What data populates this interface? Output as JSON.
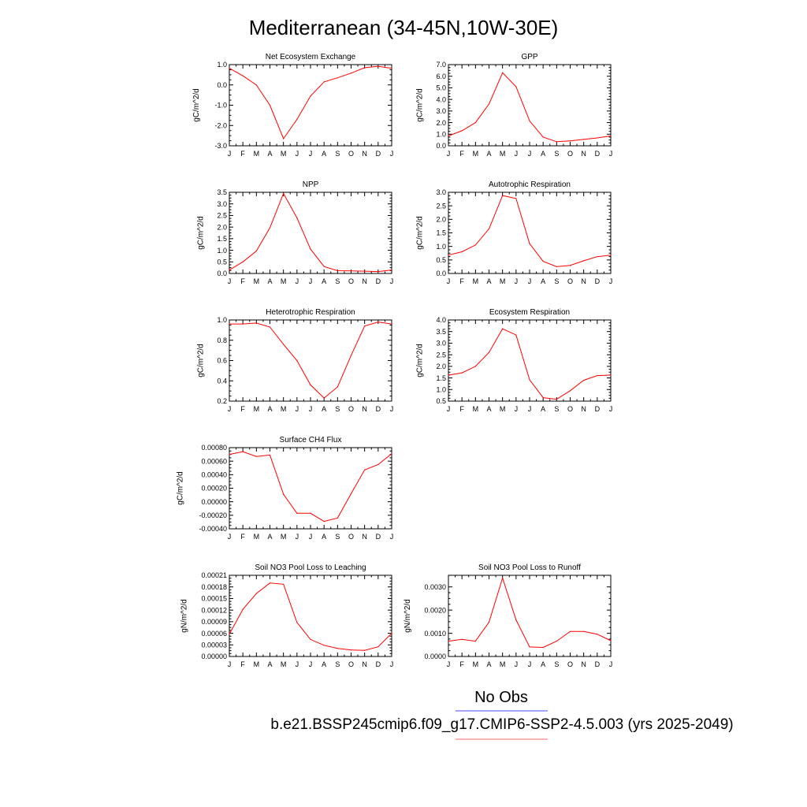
{
  "figure": {
    "title": "Mediterranean (34-45N,10W-30E)",
    "months": [
      "J",
      "F",
      "M",
      "A",
      "M",
      "J",
      "J",
      "A",
      "S",
      "O",
      "N",
      "D",
      "J"
    ],
    "line_color": "#ff0000",
    "legend": {
      "obs_label": "No Obs",
      "obs_color": "#4444ff",
      "case_label": "b.e21.BSSP245cmip6.f09_g17.CMIP6-SSP2-4.5.003 (yrs 2025-2049)",
      "case_color": "#ff6666"
    }
  },
  "chart_data": [
    {
      "type": "line",
      "title": "Net Ecosystem Exchange",
      "ylabel": "gC/m^2/d",
      "ylim": [
        -3.0,
        1.0
      ],
      "yticks": [
        -3.0,
        -2.0,
        -1.0,
        0.0,
        1.0
      ],
      "yticklabels": [
        "-3.0",
        "-2.0",
        "-1.0",
        "0.0",
        "1.0"
      ],
      "x": [
        "J",
        "F",
        "M",
        "A",
        "M",
        "J",
        "J",
        "A",
        "S",
        "O",
        "N",
        "D",
        "J"
      ],
      "values": [
        0.82,
        0.45,
        0.0,
        -1.0,
        -2.65,
        -1.7,
        -0.55,
        0.15,
        0.35,
        0.58,
        0.85,
        0.92,
        0.82
      ]
    },
    {
      "type": "line",
      "title": "GPP",
      "ylabel": "gC/m^2/d",
      "ylim": [
        0.0,
        7.0
      ],
      "yticks": [
        0,
        1,
        2,
        3,
        4,
        5,
        6,
        7
      ],
      "yticklabels": [
        "0.0",
        "1.0",
        "2.0",
        "3.0",
        "4.0",
        "5.0",
        "6.0",
        "7.0"
      ],
      "x": [
        "J",
        "F",
        "M",
        "A",
        "M",
        "J",
        "J",
        "A",
        "S",
        "O",
        "N",
        "D",
        "J"
      ],
      "values": [
        0.85,
        1.3,
        2.0,
        3.6,
        6.3,
        5.1,
        2.15,
        0.75,
        0.35,
        0.42,
        0.55,
        0.68,
        0.85
      ]
    },
    {
      "type": "line",
      "title": "NPP",
      "ylabel": "gC/m^2/d",
      "ylim": [
        0.0,
        3.5
      ],
      "yticks": [
        0,
        0.5,
        1,
        1.5,
        2,
        2.5,
        3,
        3.5
      ],
      "yticklabels": [
        "0.0",
        "0.5",
        "1.0",
        "1.5",
        "2.0",
        "2.5",
        "3.0",
        "3.5"
      ],
      "x": [
        "J",
        "F",
        "M",
        "A",
        "M",
        "J",
        "J",
        "A",
        "S",
        "O",
        "N",
        "D",
        "J"
      ],
      "values": [
        0.15,
        0.5,
        0.97,
        1.97,
        3.45,
        2.4,
        1.05,
        0.3,
        0.12,
        0.11,
        0.1,
        0.08,
        0.15
      ]
    },
    {
      "type": "line",
      "title": "Autotrophic Respiration",
      "ylabel": "gC/m^2/d",
      "ylim": [
        0.0,
        3.0
      ],
      "yticks": [
        0,
        0.5,
        1,
        1.5,
        2,
        2.5,
        3
      ],
      "yticklabels": [
        "0.0",
        "0.5",
        "1.0",
        "1.5",
        "2.0",
        "2.5",
        "3.0"
      ],
      "x": [
        "J",
        "F",
        "M",
        "A",
        "M",
        "J",
        "J",
        "A",
        "S",
        "O",
        "N",
        "D",
        "J"
      ],
      "values": [
        0.68,
        0.8,
        1.05,
        1.65,
        2.88,
        2.77,
        1.1,
        0.45,
        0.25,
        0.3,
        0.47,
        0.62,
        0.68
      ]
    },
    {
      "type": "line",
      "title": "Heterotrophic Respiration",
      "ylabel": "gC/m^2/d",
      "ylim": [
        0.2,
        1.0
      ],
      "yticks": [
        0.2,
        0.4,
        0.6,
        0.8,
        1.0
      ],
      "yticklabels": [
        "0.2",
        "0.4",
        "0.6",
        "0.8",
        "1.0"
      ],
      "x": [
        "J",
        "F",
        "M",
        "A",
        "M",
        "J",
        "J",
        "A",
        "S",
        "O",
        "N",
        "D",
        "J"
      ],
      "values": [
        0.96,
        0.96,
        0.97,
        0.93,
        0.76,
        0.6,
        0.36,
        0.23,
        0.34,
        0.65,
        0.94,
        0.98,
        0.96
      ]
    },
    {
      "type": "line",
      "title": "Ecosystem Respiration",
      "ylabel": "gC/m^2/d",
      "ylim": [
        0.5,
        4.0
      ],
      "yticks": [
        0.5,
        1,
        1.5,
        2,
        2.5,
        3,
        3.5,
        4
      ],
      "yticklabels": [
        "0.5",
        "1.0",
        "1.5",
        "2.0",
        "2.5",
        "3.0",
        "3.5",
        "4.0"
      ],
      "x": [
        "J",
        "F",
        "M",
        "A",
        "M",
        "J",
        "J",
        "A",
        "S",
        "O",
        "N",
        "D",
        "J"
      ],
      "values": [
        1.62,
        1.72,
        2.0,
        2.6,
        3.62,
        3.35,
        1.42,
        0.65,
        0.58,
        0.95,
        1.4,
        1.6,
        1.62
      ]
    },
    {
      "type": "line",
      "title": "Surface CH4 Flux",
      "ylabel": "gC/m^2/d",
      "ylim": [
        -0.0004,
        0.0008
      ],
      "yticks": [
        -0.0004,
        -0.0002,
        0,
        0.0002,
        0.0004,
        0.0006,
        0.0008
      ],
      "yticklabels": [
        "-0.00040",
        "-0.00020",
        "0.00000",
        "0.00020",
        "0.00040",
        "0.00060",
        "0.00080"
      ],
      "x": [
        "J",
        "F",
        "M",
        "A",
        "M",
        "J",
        "J",
        "A",
        "S",
        "O",
        "N",
        "D",
        "J"
      ],
      "values": [
        0.0007,
        0.00074,
        0.00067,
        0.00069,
        0.00011,
        -0.00017,
        -0.00017,
        -0.00029,
        -0.00024,
        0.00012,
        0.00047,
        0.00055,
        0.00071
      ]
    },
    {
      "type": "line",
      "title": "Soil NO3 Pool Loss to Leaching",
      "ylabel": "gN/m^2/d",
      "ylim": [
        0.0,
        0.00021
      ],
      "yticks": [
        0,
        3e-05,
        6e-05,
        9e-05,
        0.00012,
        0.00015,
        0.00018,
        0.00021
      ],
      "yticklabels": [
        "0.00000",
        "0.00003",
        "0.00006",
        "0.00009",
        "0.00012",
        "0.00015",
        "0.00018",
        "0.00021"
      ],
      "x": [
        "J",
        "F",
        "M",
        "A",
        "M",
        "J",
        "J",
        "A",
        "S",
        "O",
        "N",
        "D",
        "J"
      ],
      "values": [
        5.8e-05,
        0.000122,
        0.000163,
        0.00019,
        0.000187,
        8.8e-05,
        4.4e-05,
        2.9e-05,
        2.1e-05,
        1.7e-05,
        1.6e-05,
        2.5e-05,
        6e-05
      ]
    },
    {
      "type": "line",
      "title": "Soil NO3 Pool Loss to Runoff",
      "ylabel": "gN/m^2/d",
      "ylim": [
        0.0,
        0.0035
      ],
      "yticks": [
        0,
        0.001,
        0.002,
        0.003
      ],
      "yticklabels": [
        "0.0000",
        "0.0010",
        "0.0020",
        "0.0030"
      ],
      "x": [
        "J",
        "F",
        "M",
        "A",
        "M",
        "J",
        "J",
        "A",
        "S",
        "O",
        "N",
        "D",
        "J"
      ],
      "values": [
        0.00066,
        0.00074,
        0.00066,
        0.00148,
        0.00338,
        0.00158,
        0.00041,
        0.00039,
        0.00066,
        0.00108,
        0.00108,
        0.00096,
        0.00068
      ]
    }
  ]
}
